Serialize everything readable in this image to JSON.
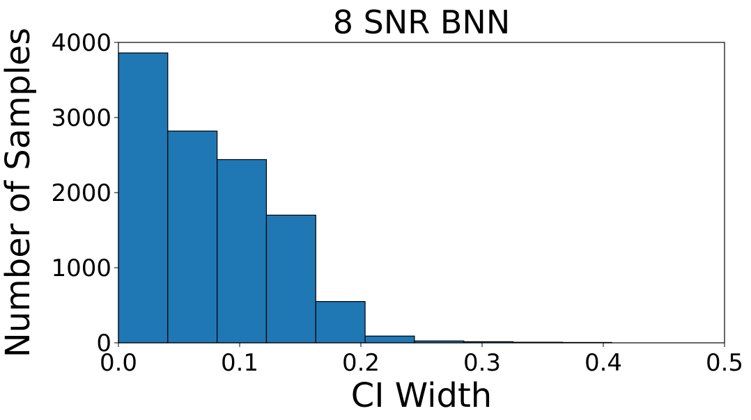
{
  "chart_data": {
    "type": "histogram",
    "title": "8 SNR BNN",
    "x_label": "CI Width",
    "y_label": "Number of Samples",
    "bins": [
      0,
      0.0407,
      0.0814,
      0.1221,
      0.1628,
      0.2035,
      0.2442,
      0.2849,
      0.3256,
      0.3663,
      0.407
    ],
    "counts": [
      3860,
      2820,
      2440,
      1700,
      550,
      90,
      25,
      15,
      8,
      5
    ],
    "color": "#1f77b4",
    "edgecolor": "#000000",
    "xlim": [
      0,
      0.5
    ],
    "xticks": [
      {
        "value": 0,
        "label": "0.0"
      },
      0.1,
      0.2,
      0.3,
      0.4,
      0.5
    ],
    "ylim": [
      0,
      4000
    ],
    "yticks": [
      0,
      1000,
      2000,
      3000,
      4000
    ],
    "grid": false
  }
}
